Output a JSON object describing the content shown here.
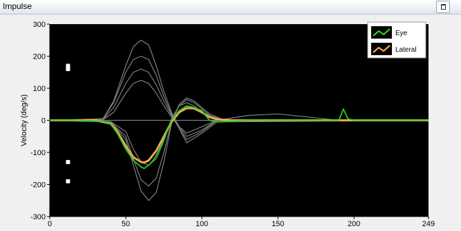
{
  "window": {
    "title": "Impulse"
  },
  "colors": {
    "plot_bg": "#000000",
    "eye": "#22d61a",
    "lateral": "#f0a65a",
    "background_traces": "#7f7f7f",
    "markers": "#ffffff"
  },
  "chart_data": {
    "type": "line",
    "xlabel": "",
    "ylabel": "Velocity (deg/s)",
    "xlim": [
      0,
      249
    ],
    "ylim": [
      -300,
      300
    ],
    "x_ticks": [
      "0",
      "50",
      "100",
      "150",
      "200",
      "249"
    ],
    "y_ticks": [
      "300",
      "200",
      "100",
      "0",
      "-100",
      "-200",
      "-300"
    ],
    "grid": false,
    "legend_position": "top-right",
    "series": [
      {
        "name": "Eye",
        "color": "#22d61a",
        "x": [
          0,
          20,
          35,
          40,
          45,
          50,
          55,
          60,
          62,
          65,
          68,
          70,
          75,
          80,
          85,
          90,
          95,
          100,
          105,
          110,
          130,
          150,
          190,
          193,
          196,
          200,
          249
        ],
        "values": [
          0,
          0,
          -3,
          -10,
          -45,
          -90,
          -125,
          -145,
          -150,
          -140,
          -125,
          -110,
          -60,
          0,
          30,
          45,
          40,
          30,
          0,
          -5,
          0,
          0,
          0,
          35,
          5,
          0,
          0
        ]
      },
      {
        "name": "Lateral",
        "color": "#f0a65a",
        "x": [
          0,
          30,
          40,
          45,
          50,
          55,
          60,
          62,
          65,
          70,
          75,
          80,
          85,
          90,
          95,
          100,
          105,
          110,
          120,
          150,
          249
        ],
        "values": [
          0,
          0,
          -10,
          -40,
          -80,
          -115,
          -130,
          -132,
          -125,
          -95,
          -50,
          -5,
          25,
          38,
          37,
          25,
          10,
          3,
          0,
          0,
          0
        ]
      },
      {
        "x": [
          0,
          35,
          42,
          50,
          55,
          60,
          65,
          70,
          75,
          80,
          85,
          90,
          100,
          110,
          249
        ],
        "values": [
          0,
          5,
          60,
          170,
          230,
          250,
          235,
          170,
          90,
          25,
          -20,
          -50,
          -30,
          0,
          0
        ]
      },
      {
        "x": [
          0,
          35,
          42,
          50,
          55,
          60,
          65,
          70,
          75,
          80,
          85,
          90,
          100,
          110,
          249
        ],
        "values": [
          0,
          5,
          55,
          150,
          190,
          200,
          190,
          140,
          75,
          20,
          -25,
          -60,
          -35,
          0,
          0
        ]
      },
      {
        "x": [
          0,
          35,
          42,
          50,
          55,
          60,
          65,
          70,
          75,
          80,
          85,
          90,
          100,
          110,
          249
        ],
        "values": [
          0,
          3,
          40,
          115,
          150,
          160,
          150,
          110,
          60,
          15,
          -25,
          -70,
          -40,
          -5,
          0
        ]
      },
      {
        "x": [
          0,
          35,
          42,
          50,
          55,
          60,
          65,
          70,
          75,
          80,
          85,
          90,
          100,
          110,
          249
        ],
        "values": [
          0,
          2,
          25,
          85,
          115,
          125,
          115,
          85,
          45,
          10,
          -20,
          -40,
          -20,
          0,
          0
        ]
      },
      {
        "x": [
          0,
          40,
          50,
          55,
          60,
          65,
          70,
          75,
          80,
          85,
          90,
          95,
          100,
          105,
          115,
          249
        ],
        "values": [
          0,
          -5,
          -60,
          -140,
          -220,
          -250,
          -225,
          -130,
          -10,
          50,
          70,
          60,
          40,
          20,
          0,
          0
        ]
      },
      {
        "x": [
          0,
          40,
          50,
          55,
          60,
          65,
          70,
          75,
          80,
          85,
          90,
          95,
          100,
          105,
          115,
          249
        ],
        "values": [
          0,
          -5,
          -50,
          -120,
          -185,
          -205,
          -180,
          -100,
          -5,
          45,
          65,
          55,
          35,
          15,
          0,
          0
        ]
      },
      {
        "x": [
          0,
          40,
          50,
          55,
          60,
          65,
          70,
          75,
          80,
          85,
          90,
          95,
          100,
          105,
          115,
          249
        ],
        "values": [
          0,
          -4,
          -35,
          -90,
          -130,
          -140,
          -120,
          -65,
          5,
          45,
          55,
          45,
          25,
          10,
          0,
          0
        ]
      },
      {
        "x": [
          0,
          110,
          130,
          150,
          170,
          180,
          190,
          249
        ],
        "values": [
          0,
          0,
          15,
          20,
          10,
          5,
          0,
          0
        ]
      }
    ],
    "markers": [
      {
        "x": 12,
        "y": 170
      },
      {
        "x": 12,
        "y": 160
      },
      {
        "x": 12,
        "y": -130
      },
      {
        "x": 12,
        "y": -190
      }
    ]
  }
}
